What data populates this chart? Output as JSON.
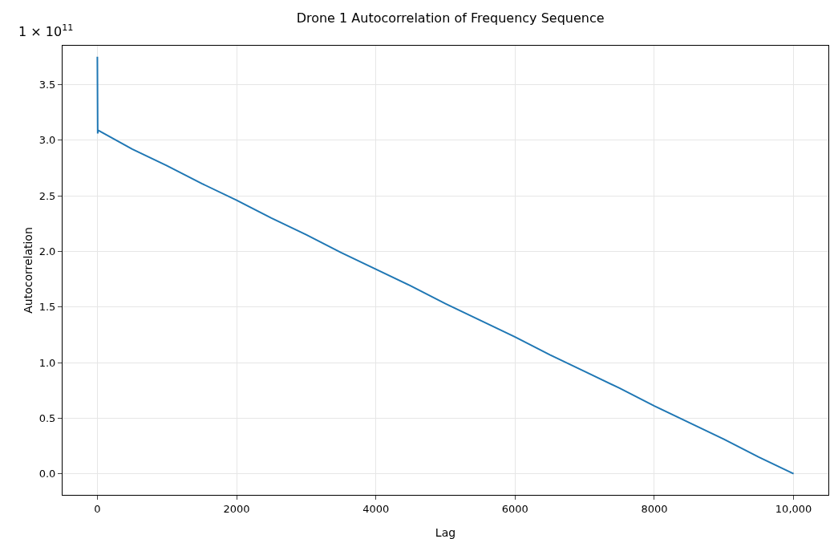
{
  "chart_data": {
    "type": "line",
    "title": "Drone 1 Autocorrelation of Frequency Sequence",
    "xlabel": "Lag",
    "ylabel": "Autocorrelation",
    "annotations": [
      "1 × 10$^{11}$"
    ],
    "x": [
      0,
      5,
      10,
      500,
      1000,
      1500,
      2000,
      2500,
      3000,
      3500,
      4000,
      4500,
      5000,
      5500,
      6000,
      6500,
      7000,
      7500,
      8000,
      8500,
      9000,
      9500,
      10000
    ],
    "series": [
      {
        "color": "#1f77b4",
        "values": [
          3.75,
          3.06,
          3.09,
          2.92,
          2.77,
          2.61,
          2.46,
          2.3,
          2.15,
          1.99,
          1.84,
          1.69,
          1.53,
          1.38,
          1.23,
          1.07,
          0.92,
          0.77,
          0.61,
          0.46,
          0.31,
          0.15,
          0.0
        ]
      }
    ],
    "xlim": [
      -500,
      10500
    ],
    "xticks": [
      0,
      2000,
      4000,
      6000,
      8000,
      {
        "value": 10000,
        "label": "10,000"
      }
    ],
    "ylim": [
      -0.19,
      3.85
    ],
    "yticks": [
      {
        "value": 0,
        "label": "0.0"
      },
      0.5,
      {
        "value": 1,
        "label": "1.0"
      },
      1.5,
      {
        "value": 2,
        "label": "2.0"
      },
      2.5,
      {
        "value": 3,
        "label": "3.0"
      },
      3.5
    ],
    "grid": true,
    "legend": false,
    "line_style": "solid",
    "marker": "none"
  }
}
